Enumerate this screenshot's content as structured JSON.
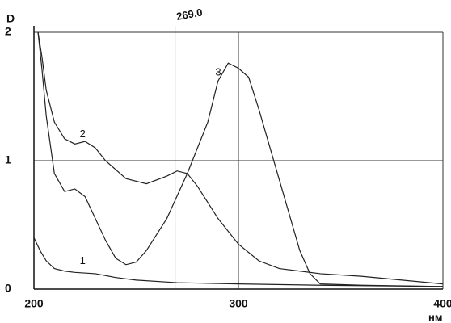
{
  "chart_data": {
    "type": "line",
    "x_label": "нм",
    "y_label": "D",
    "xlim": [
      200,
      400
    ],
    "ylim": [
      0,
      2
    ],
    "xticks": [
      200,
      300,
      400
    ],
    "yticks": [
      0,
      1,
      2
    ],
    "grid": true,
    "series": [
      {
        "name": "1",
        "color": "#222222",
        "x": [
          200,
          203,
          206,
          210,
          215,
          220,
          230,
          240,
          250,
          270,
          300,
          340,
          400
        ],
        "values": [
          0.4,
          0.3,
          0.22,
          0.16,
          0.14,
          0.13,
          0.12,
          0.09,
          0.07,
          0.05,
          0.04,
          0.03,
          0.02
        ]
      },
      {
        "name": "2",
        "color": "#222222",
        "x": [
          202,
          204,
          206,
          210,
          215,
          220,
          225,
          230,
          235,
          245,
          255,
          265,
          270,
          275,
          280,
          290,
          300,
          310,
          320,
          340,
          360,
          380,
          400
        ],
        "values": [
          2.0,
          1.8,
          1.55,
          1.3,
          1.17,
          1.13,
          1.15,
          1.1,
          1.0,
          0.86,
          0.82,
          0.88,
          0.92,
          0.9,
          0.8,
          0.55,
          0.35,
          0.22,
          0.16,
          0.12,
          0.1,
          0.07,
          0.04
        ]
      },
      {
        "name": "3",
        "color": "#222222",
        "x": [
          202,
          204,
          206,
          210,
          215,
          220,
          225,
          230,
          235,
          240,
          245,
          250,
          255,
          265,
          275,
          285,
          290,
          295,
          300,
          305,
          310,
          320,
          330,
          335,
          340,
          360,
          400
        ],
        "values": [
          2.0,
          1.7,
          1.35,
          0.9,
          0.76,
          0.78,
          0.72,
          0.55,
          0.38,
          0.24,
          0.19,
          0.21,
          0.3,
          0.55,
          0.9,
          1.3,
          1.62,
          1.76,
          1.72,
          1.65,
          1.4,
          0.85,
          0.3,
          0.12,
          0.04,
          0.03,
          0.02
        ]
      }
    ],
    "annotations": [
      {
        "x": 269,
        "label": "269.0"
      }
    ]
  }
}
